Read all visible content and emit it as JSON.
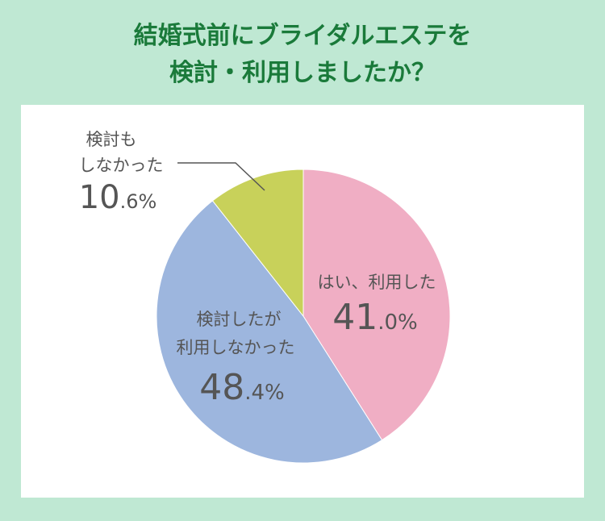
{
  "title": {
    "line1": "結婚式前にブライダルエステを",
    "line2": "検討・利用しましたか？"
  },
  "chart_data": {
    "type": "pie",
    "title": "結婚式前にブライダルエステを検討・利用しましたか？",
    "slices": [
      {
        "label_lines": [
          "はい、利用した"
        ],
        "pct_int": "41",
        "pct_dec": ".0%",
        "value": 41.0,
        "color": "#f0aec4"
      },
      {
        "label_lines": [
          "検討したが",
          "利用しなかった"
        ],
        "pct_int": "48",
        "pct_dec": ".4%",
        "value": 48.4,
        "color": "#9db6de"
      },
      {
        "label_lines": [
          "検討も",
          "しなかった"
        ],
        "pct_int": "10",
        "pct_dec": ".6%",
        "value": 10.6,
        "color": "#c8d15a"
      }
    ],
    "start_angle": "12 o'clock",
    "direction": "clockwise"
  }
}
